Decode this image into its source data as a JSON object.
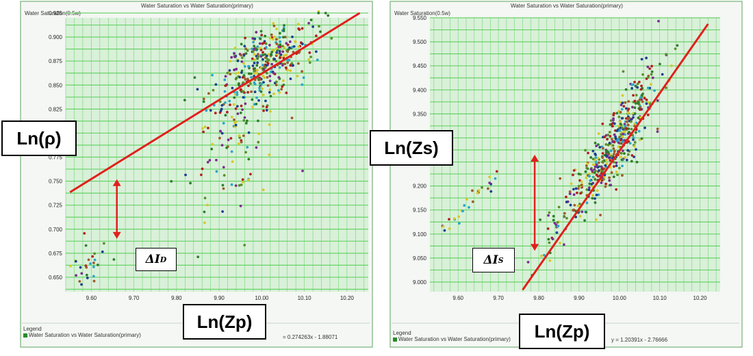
{
  "colors": {
    "plot_bg": "#d9f0d9",
    "grid": "#5ccf5c",
    "border": "#8fbf8f",
    "fit_line": "#e0201c",
    "arrow": "#e0201c",
    "point_palette": [
      "#2e7d2e",
      "#1c3f8f",
      "#d6c82a",
      "#b32020",
      "#7b2e8e",
      "#2aa6c8",
      "#5a8f2a",
      "#a05a2a"
    ]
  },
  "panels": [
    {
      "chart_title": "Water Saturation vs Water Saturation(primary)",
      "color_label": "Water Saturation(0.5w)",
      "ylabel_box": "Ln(ρ)",
      "xlabel_box": "Ln(Zp)",
      "delta_label": "ΔI",
      "delta_sub": "D",
      "legend_title": "Legend",
      "legend_entry": "Water Saturation vs Water Saturation(primary)",
      "equation": "= 0.274263x - 1.88071"
    },
    {
      "chart_title": "Water Saturation vs Water Saturation(primary)",
      "color_label": "Water Saturation(0.5w)",
      "ylabel_box": "Ln(Zs)",
      "xlabel_box": "Ln(Zp)",
      "delta_label": "ΔI",
      "delta_sub": "S",
      "legend_title": "Legend",
      "legend_entry": "Water Saturation vs Water Saturation(primary)",
      "equation": "y = 1.20391x - 2.76666"
    }
  ],
  "chart_data": [
    {
      "type": "scatter",
      "title": "Water Saturation vs Water Saturation(primary)",
      "xlabel": "Ln(Zp)",
      "ylabel": "Ln(ρ)",
      "xlim": [
        9.54,
        10.25
      ],
      "ylim": [
        0.635,
        0.93
      ],
      "xticks": [
        "9.60",
        "9.70",
        "9.80",
        "9.90",
        "10.00",
        "10.10",
        "10.20"
      ],
      "yticks": [
        "0.650",
        "0.675",
        "0.700",
        "0.725",
        "0.750",
        "0.775",
        "0.800",
        "0.825",
        "0.850",
        "0.875",
        "0.900",
        "0.925"
      ],
      "fit": {
        "slope": 0.274263,
        "intercept": -1.88071,
        "x_range": [
          9.55,
          10.23
        ]
      },
      "clusters": [
        {
          "name": "main",
          "cx": 10.0,
          "cy": 0.868,
          "sx": 0.055,
          "sy": 0.02,
          "n": 380
        },
        {
          "name": "tail",
          "cx": 9.92,
          "cy": 0.79,
          "sx": 0.06,
          "sy": 0.035,
          "n": 90
        },
        {
          "name": "low",
          "cx": 9.6,
          "cy": 0.668,
          "sx": 0.025,
          "sy": 0.012,
          "n": 28
        }
      ],
      "delta_arrow": {
        "x": 9.66,
        "y1": 0.752,
        "y2": 0.69
      }
    },
    {
      "type": "scatter",
      "title": "Water Saturation vs Water Saturation(primary)",
      "xlabel": "Ln(Zp)",
      "ylabel": "Ln(Zs)",
      "xlim": [
        9.53,
        10.25
      ],
      "ylim": [
        8.98,
        9.57
      ],
      "xticks": [
        "9.60",
        "9.70",
        "9.80",
        "9.90",
        "10.00",
        "10.10",
        "10.20"
      ],
      "yticks": [
        "9.000",
        "9.050",
        "9.100",
        "9.150",
        "9.200",
        "9.250",
        "9.300",
        "9.350",
        "9.400",
        "9.450",
        "9.500",
        "9.550"
      ],
      "fit": {
        "slope": 1.20391,
        "intercept": -2.76666,
        "x_range": [
          9.76,
          10.22
        ]
      },
      "clusters": [
        {
          "name": "main",
          "cx": 10.0,
          "cy": 9.3,
          "sx": 0.05,
          "sy": 0.07,
          "n": 420
        },
        {
          "name": "spread",
          "cx": 9.88,
          "cy": 9.16,
          "sx": 0.05,
          "sy": 0.06,
          "n": 80
        },
        {
          "name": "low",
          "cx": 9.6,
          "cy": 9.12,
          "sx": 0.025,
          "sy": 0.025,
          "n": 28
        }
      ],
      "delta_arrow": {
        "x": 9.79,
        "y1": 9.265,
        "y2": 9.065
      }
    }
  ]
}
